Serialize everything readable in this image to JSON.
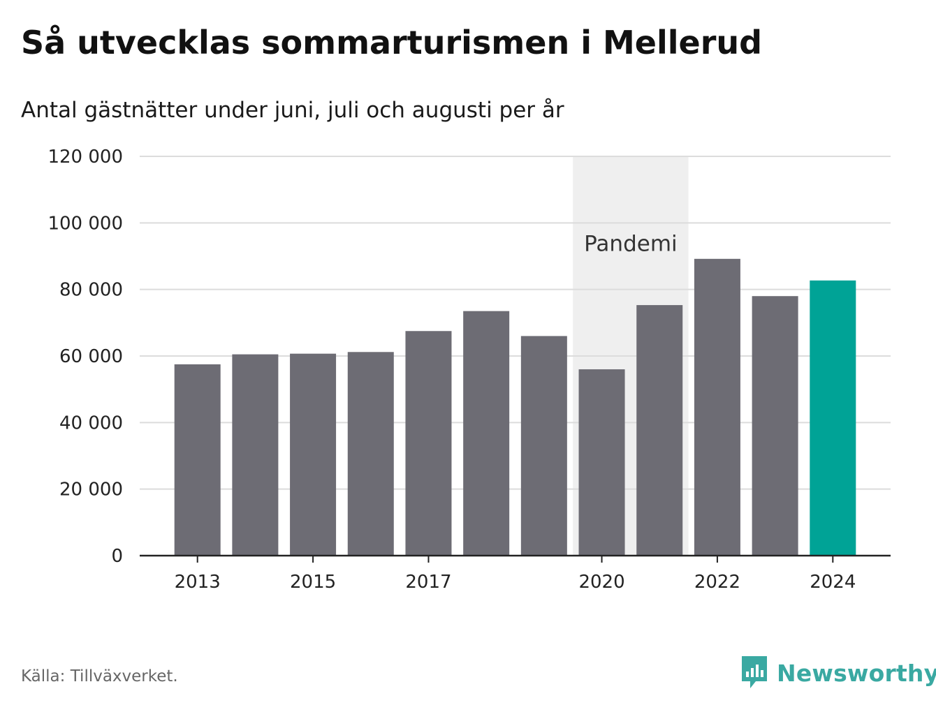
{
  "header": {
    "title": "Så utvecklas sommarturismen i Mellerud",
    "subtitle": "Antal gästnätter under juni, juli och augusti per år"
  },
  "footer": {
    "source": "Källa: Tillväxverket.",
    "brand": "Newsworthy"
  },
  "colors": {
    "bar": "#6d6c74",
    "highlight": "#00a396",
    "band": "#efefef",
    "grid": "#dcdcdc",
    "axis": "#222222",
    "brand": "#3aa9a2"
  },
  "chart_data": {
    "type": "bar",
    "categories": [
      "2013",
      "2014",
      "2015",
      "2016",
      "2017",
      "2018",
      "2019",
      "2020",
      "2021",
      "2022",
      "2023",
      "2024"
    ],
    "values": [
      57500,
      60500,
      60700,
      61200,
      67500,
      73500,
      66000,
      56000,
      75300,
      89200,
      78000,
      82700
    ],
    "highlight_category": "2024",
    "x_tick_labels": [
      "2013",
      "2015",
      "2017",
      "2020",
      "2022",
      "2024"
    ],
    "y_ticks": [
      0,
      20000,
      40000,
      60000,
      80000,
      100000,
      120000
    ],
    "y_tick_labels": [
      "0",
      "20 000",
      "40 000",
      "60 000",
      "80 000",
      "100 000",
      "120 000"
    ],
    "ylim": [
      0,
      120000
    ],
    "grid": true,
    "xlabel": "",
    "ylabel": "",
    "annotation": {
      "label": "Pandemi",
      "from": "2020",
      "to": "2021"
    }
  }
}
